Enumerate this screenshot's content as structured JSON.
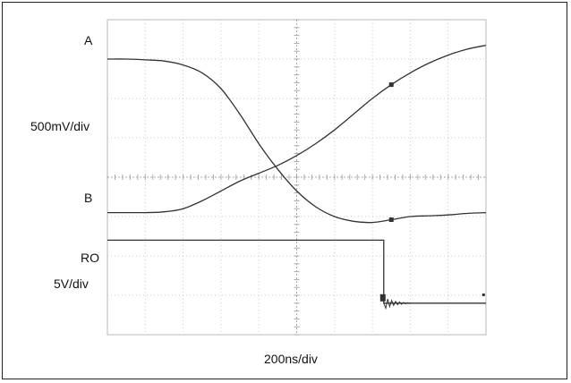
{
  "chart_data": {
    "type": "line",
    "title": "",
    "xlabel": "200ns/div",
    "grid": true,
    "grid_divisions": {
      "x": 10,
      "y": 8
    },
    "x_range_divs": [
      0,
      10
    ],
    "y_range_divs": [
      -4,
      4
    ],
    "channel_labels": {
      "a": "A",
      "a_scale": "500mV/div",
      "b": "B",
      "ro": "RO",
      "ro_scale": "5V/div"
    },
    "series": [
      {
        "name": "A",
        "x_div": [
          0,
          0.5,
          1.0,
          1.5,
          2.0,
          2.5,
          3.0,
          3.5,
          4.0,
          4.5,
          5.0,
          5.5,
          6.0,
          6.5,
          7.0,
          7.5,
          8.0,
          8.5,
          9.0,
          9.5,
          10.0
        ],
        "y_div": [
          3.0,
          3.0,
          2.98,
          2.95,
          2.85,
          2.65,
          2.25,
          1.6,
          0.85,
          0.2,
          -0.35,
          -0.75,
          -1.0,
          -1.12,
          -1.15,
          -1.08,
          -1.0,
          -0.98,
          -0.96,
          -0.92,
          -0.9
        ]
      },
      {
        "name": "B",
        "x_div": [
          0,
          0.5,
          1.0,
          1.5,
          2.0,
          2.5,
          3.0,
          3.5,
          4.0,
          4.5,
          5.0,
          5.5,
          6.0,
          6.5,
          7.0,
          7.5,
          8.0,
          8.5,
          9.0,
          9.5,
          10.0
        ],
        "y_div": [
          -0.9,
          -0.9,
          -0.9,
          -0.88,
          -0.8,
          -0.6,
          -0.35,
          -0.1,
          0.1,
          0.3,
          0.55,
          0.85,
          1.2,
          1.6,
          2.0,
          2.35,
          2.65,
          2.9,
          3.1,
          3.25,
          3.35
        ]
      },
      {
        "name": "RO",
        "x_div": [
          0,
          7.3,
          7.3,
          10.0
        ],
        "y_div": [
          -1.6,
          -1.6,
          -3.2,
          -3.2
        ]
      }
    ]
  }
}
